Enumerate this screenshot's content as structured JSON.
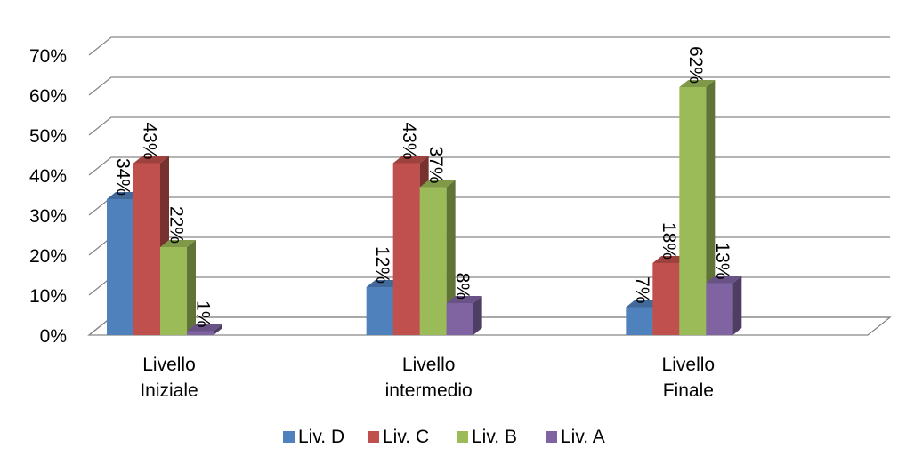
{
  "chart_data": {
    "type": "bar",
    "categories": [
      [
        "Livello",
        "Iniziale"
      ],
      [
        "Livello",
        "intermedio"
      ],
      [
        "Livello",
        "Finale"
      ]
    ],
    "series": [
      {
        "name": "Liv. D",
        "values": [
          34,
          12,
          7
        ],
        "labels": [
          "34%",
          "12%",
          "7%"
        ],
        "color": "#4f81bd"
      },
      {
        "name": "Liv. C",
        "values": [
          43,
          43,
          18
        ],
        "labels": [
          "43%",
          "43%",
          "18%"
        ],
        "color": "#c0504d"
      },
      {
        "name": "Liv. B",
        "values": [
          22,
          37,
          62
        ],
        "labels": [
          "22%",
          "37%",
          "62%"
        ],
        "color": "#9bbb59"
      },
      {
        "name": "Liv. A",
        "values": [
          1,
          8,
          13
        ],
        "labels": [
          "1%",
          "8%",
          "13%"
        ],
        "color": "#8064a2"
      }
    ],
    "yticks": [
      "0%",
      "10%",
      "20%",
      "30%",
      "40%",
      "50%",
      "60%",
      "70%"
    ],
    "ylim": [
      0,
      70
    ],
    "grid": true,
    "legend": "bottom",
    "three_d": true
  }
}
